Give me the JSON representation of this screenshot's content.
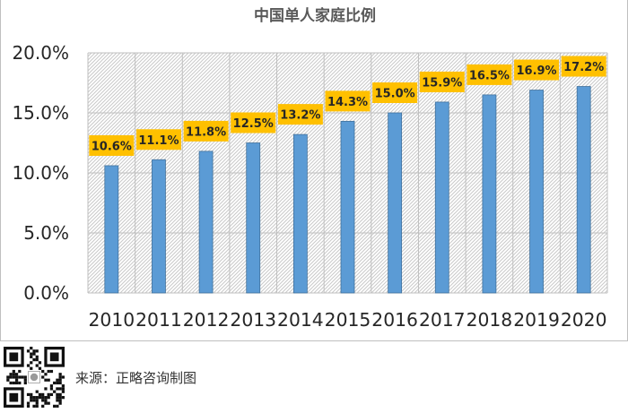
{
  "chart_data": {
    "type": "bar",
    "title": "中国单人家庭比例",
    "categories": [
      "2010",
      "2011",
      "2012",
      "2013",
      "2014",
      "2015",
      "2016",
      "2017",
      "2018",
      "2019",
      "2020"
    ],
    "values": [
      10.6,
      11.1,
      11.8,
      12.5,
      13.2,
      14.3,
      15.0,
      15.9,
      16.5,
      16.9,
      17.2
    ],
    "data_labels": [
      "10.6%",
      "11.1%",
      "11.8%",
      "12.5%",
      "13.2%",
      "14.3%",
      "15.0%",
      "15.9%",
      "16.5%",
      "16.9%",
      "17.2%"
    ],
    "yticks": [
      "0.0%",
      "5.0%",
      "10.0%",
      "15.0%",
      "20.0%"
    ],
    "ylim": [
      0,
      20
    ],
    "xlabel": "",
    "ylabel": "",
    "grid": true,
    "legend": "none",
    "colors": {
      "bar": "#5b9bd5",
      "bar_edge": "#41719c",
      "label_bg": "#ffc000",
      "grid": "#bfbfbf",
      "hatch": "#c9c9c9"
    }
  },
  "footer": {
    "source": "来源：正略咨询制图"
  }
}
